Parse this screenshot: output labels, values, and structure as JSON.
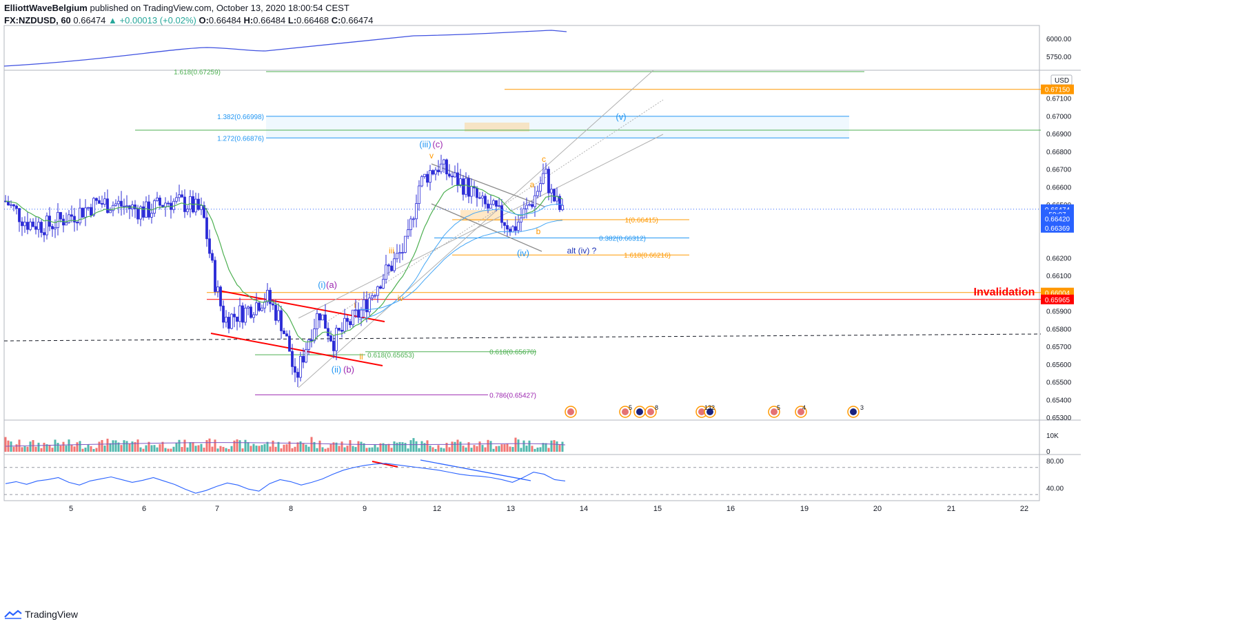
{
  "header": {
    "author": "ElliottWaveBelgium",
    "published": "published on TradingView.com, October 13, 2020 18:00:54 CEST",
    "symbol": "FX:NZDUSD, 60",
    "last": "0.66474",
    "change": "▲ +0.00013 (+0.02%)",
    "o_label": "O:",
    "o": "0.66484",
    "h_label": "H:",
    "h": "0.66484",
    "l_label": "L:",
    "l": "0.66468",
    "c_label": "C:",
    "c": "0.66474"
  },
  "footer": {
    "brand": "TradingView"
  },
  "colors": {
    "bull": "#26a69a",
    "bear": "#ef5350",
    "candle": "#2a2ad6",
    "fib_blue": "#2196f3",
    "fib_green": "#4caf50",
    "fib_orange": "#ff9800",
    "fib_purple": "#9c27b0",
    "invalid": "#ff0000",
    "rsi": "#2962ff"
  },
  "chart_data": {
    "type": "candlestick",
    "symbol": "FX:NZDUSD",
    "timeframe": "60",
    "currency": "USD",
    "price_axis": {
      "ylim": [
        0.653,
        0.6725
      ],
      "ticks": [
        "0.67100",
        "0.67000",
        "0.66900",
        "0.66800",
        "0.66700",
        "0.66600",
        "0.66500",
        "0.66200",
        "0.66100",
        "0.65900",
        "0.65800",
        "0.65700",
        "0.65600",
        "0.65500",
        "0.65400",
        "0.65300"
      ]
    },
    "x_axis": {
      "ticks": [
        "5",
        "6",
        "7",
        "8",
        "9",
        "12",
        "13",
        "14",
        "15",
        "16",
        "19",
        "20",
        "21",
        "22"
      ]
    },
    "price_path": [
      [
        4.0,
        0.6652
      ],
      [
        4.3,
        0.664
      ],
      [
        4.6,
        0.6638
      ],
      [
        5.0,
        0.6645
      ],
      [
        5.3,
        0.6651
      ],
      [
        5.6,
        0.665
      ],
      [
        6.0,
        0.6646
      ],
      [
        6.3,
        0.6652
      ],
      [
        6.6,
        0.665
      ],
      [
        6.8,
        0.6645
      ],
      [
        6.95,
        0.661
      ],
      [
        7.1,
        0.6585
      ],
      [
        7.4,
        0.659
      ],
      [
        7.7,
        0.6598
      ],
      [
        7.9,
        0.6585
      ],
      [
        8.05,
        0.6565
      ],
      [
        8.1,
        0.6549
      ],
      [
        8.3,
        0.6575
      ],
      [
        8.45,
        0.659
      ],
      [
        8.65,
        0.6573
      ],
      [
        8.85,
        0.6582
      ],
      [
        9.05,
        0.659
      ],
      [
        9.3,
        0.6607
      ],
      [
        9.5,
        0.6617
      ],
      [
        9.7,
        0.6628
      ],
      [
        9.85,
        0.666
      ],
      [
        10.0,
        0.6668
      ],
      [
        10.15,
        0.6672
      ],
      [
        10.35,
        0.6665
      ],
      [
        10.55,
        0.666
      ],
      [
        10.75,
        0.665
      ],
      [
        10.95,
        0.6646
      ],
      [
        11.1,
        0.664
      ],
      [
        11.2,
        0.6636
      ],
      [
        11.35,
        0.6645
      ],
      [
        11.5,
        0.6654
      ],
      [
        11.65,
        0.6668
      ],
      [
        11.75,
        0.6655
      ],
      [
        11.9,
        0.6645
      ]
    ],
    "overlay_series": {
      "name": "",
      "axis_labels": [
        "6000.00",
        "5750.00"
      ]
    },
    "horizontal_levels": [
      {
        "label": "1.618(0.67259)",
        "value": 0.67259,
        "color": "#4caf50"
      },
      {
        "label": "1.382(0.66998)",
        "value": 0.66998,
        "color": "#2196f3"
      },
      {
        "label": "1.272(0.66876)",
        "value": 0.66876,
        "color": "#2196f3"
      },
      {
        "label": "1(0.66415)",
        "value": 0.66415,
        "color": "#ff9800"
      },
      {
        "label": "0.382(0.66312)",
        "value": 0.66312,
        "color": "#2196f3"
      },
      {
        "label": "1.618(0.66216)",
        "value": 0.66216,
        "color": "#ff9800"
      },
      {
        "label": "0.618(0.65653)",
        "value": 0.65653,
        "color": "#4caf50"
      },
      {
        "label": "0.618(0.65670)",
        "value": 0.6567,
        "color": "#4caf50"
      },
      {
        "label": "0.786(0.65427)",
        "value": 0.65427,
        "color": "#9c27b0"
      }
    ],
    "price_tags": [
      {
        "text": "0.67150",
        "value": 0.6715,
        "bg": "#ff9800"
      },
      {
        "text": "0.66474",
        "value": 0.66474,
        "bg": "#2962ff"
      },
      {
        "text": "59:07",
        "value": 0.66445,
        "bg": "#2962ff"
      },
      {
        "text": "0.66420",
        "value": 0.6642,
        "bg": "#2962ff"
      },
      {
        "text": "0.66369",
        "value": 0.66369,
        "bg": "#2962ff"
      },
      {
        "text": "0.66004",
        "value": 0.66004,
        "bg": "#ff9800"
      },
      {
        "text": "0.65965",
        "value": 0.65965,
        "bg": "#ff0000"
      }
    ],
    "annotations": [
      {
        "text": "(iii)",
        "color": "#2196f3"
      },
      {
        "text": "(c)",
        "color": "#9c27b0"
      },
      {
        "text": "v",
        "color": "#ff9800"
      },
      {
        "text": "(v)",
        "color": "#2196f3"
      },
      {
        "text": "c",
        "color": "#ff9800"
      },
      {
        "text": "a",
        "color": "#ff9800"
      },
      {
        "text": "b",
        "color": "#ff9800"
      },
      {
        "text": "(iv)",
        "color": "#2196f3"
      },
      {
        "text": "alt (iv) ?",
        "color": "#1a2fb5"
      },
      {
        "text": "iii",
        "color": "#ff9800"
      },
      {
        "text": "(i)",
        "color": "#2196f3"
      },
      {
        "text": "(a)",
        "color": "#9c27b0"
      },
      {
        "text": "i",
        "color": "#ff9800"
      },
      {
        "text": "iv",
        "color": "#ff9800"
      },
      {
        "text": "ii",
        "color": "#ff9800"
      },
      {
        "text": "(ii)",
        "color": "#2196f3"
      },
      {
        "text": "(b)",
        "color": "#9c27b0"
      },
      {
        "text": "Invalidation",
        "color": "#ff0000"
      }
    ],
    "volume_axis": [
      "10K",
      "0"
    ],
    "rsi": {
      "axis": [
        "80.00",
        "40.00"
      ],
      "values": [
        46,
        49,
        45,
        50,
        52,
        55,
        48,
        44,
        50,
        53,
        56,
        52,
        48,
        51,
        55,
        50,
        45,
        38,
        32,
        36,
        42,
        47,
        44,
        38,
        35,
        46,
        52,
        49,
        44,
        48,
        53,
        60,
        66,
        70,
        73,
        75,
        76,
        74,
        72,
        70,
        68,
        66,
        63,
        60,
        58,
        57,
        55,
        52,
        48,
        55,
        63,
        60,
        52,
        50
      ]
    },
    "event_badges": [
      "5",
      "8",
      "13",
      "2",
      "5",
      "4",
      "3"
    ]
  }
}
